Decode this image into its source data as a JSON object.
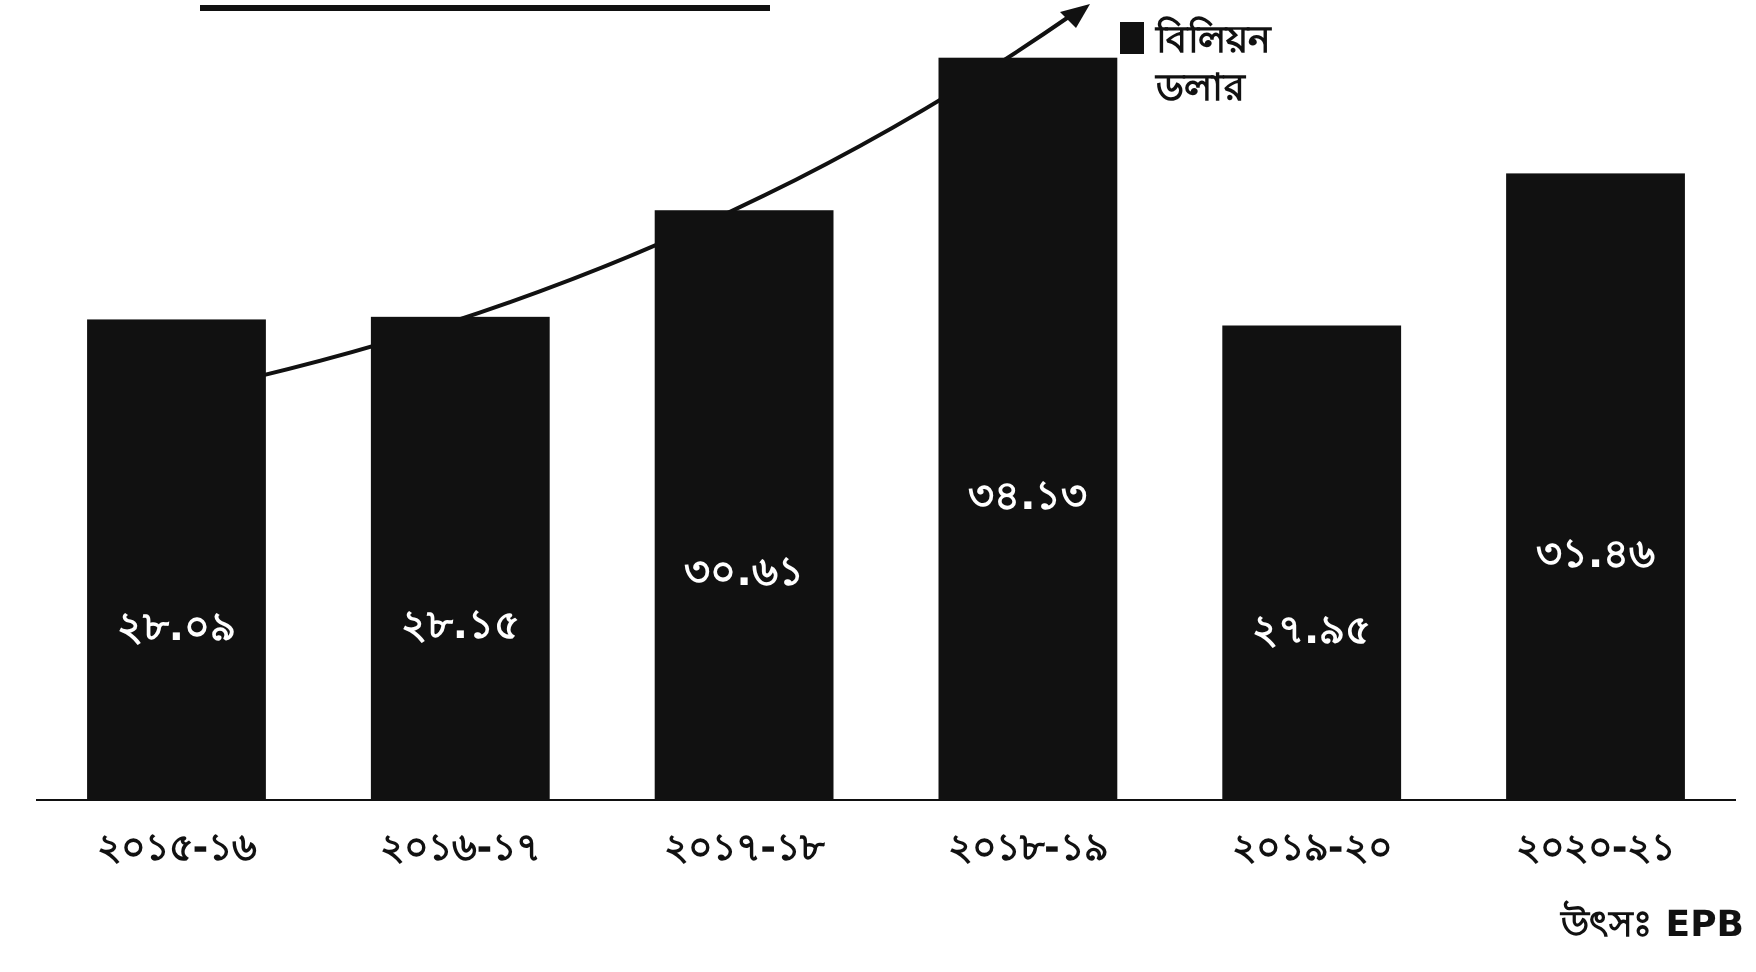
{
  "chart_data": {
    "type": "bar",
    "categories": [
      "২০১৫-১৬",
      "২০১৬-১৭",
      "২০১৭-১৮",
      "২০১৮-১৯",
      "২০১৯-২০",
      "২০২০-২১"
    ],
    "series": [
      {
        "name": "বিলিয়ন ডলার",
        "color": "#111111",
        "values": [
          28.09,
          28.15,
          30.61,
          34.13,
          27.95,
          31.46
        ],
        "value_labels": [
          "২৮.০৯",
          "২৮.১৫",
          "৩০.৬১",
          "৩৪.১৩",
          "২৭.৯৫",
          "৩১.৪৬"
        ]
      }
    ],
    "ylim": [
      17,
      35
    ],
    "tick_labels": "x",
    "legend": "top right",
    "annotations": [
      "উৎসঃ EPB"
    ]
  }
}
